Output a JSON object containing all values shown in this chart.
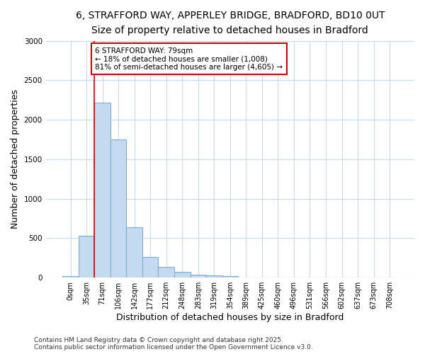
{
  "title_line1": "6, STRAFFORD WAY, APPERLEY BRIDGE, BRADFORD, BD10 0UT",
  "title_line2": "Size of property relative to detached houses in Bradford",
  "xlabel": "Distribution of detached houses by size in Bradford",
  "ylabel": "Number of detached properties",
  "categories": [
    "0sqm",
    "35sqm",
    "71sqm",
    "106sqm",
    "142sqm",
    "177sqm",
    "212sqm",
    "248sqm",
    "283sqm",
    "319sqm",
    "354sqm",
    "389sqm",
    "425sqm",
    "460sqm",
    "496sqm",
    "531sqm",
    "566sqm",
    "602sqm",
    "637sqm",
    "673sqm",
    "708sqm"
  ],
  "bar_values": [
    20,
    530,
    2220,
    1750,
    635,
    265,
    140,
    70,
    35,
    25,
    20,
    0,
    0,
    0,
    0,
    0,
    0,
    0,
    0,
    0,
    0
  ],
  "bar_color": "#c5d9f0",
  "bar_edge_color": "#7bafd4",
  "vline_color": "#cc0000",
  "vline_index": 2,
  "ylim": [
    0,
    3000
  ],
  "yticks": [
    0,
    500,
    1000,
    1500,
    2000,
    2500,
    3000
  ],
  "annotation_text": "6 STRAFFORD WAY: 79sqm\n← 18% of detached houses are smaller (1,008)\n81% of semi-detached houses are larger (4,605) →",
  "annotation_box_edgecolor": "#cc0000",
  "background_color": "#ffffff",
  "grid_color": "#c8d8e8",
  "title_fontsize": 10,
  "subtitle_fontsize": 9,
  "axis_label_fontsize": 9,
  "tick_fontsize": 7,
  "annotation_fontsize": 7.5,
  "footnote_fontsize": 6.5,
  "footnote_line1": "Contains HM Land Registry data © Crown copyright and database right 2025.",
  "footnote_line2": "Contains public sector information licensed under the Open Government Licence v3.0."
}
